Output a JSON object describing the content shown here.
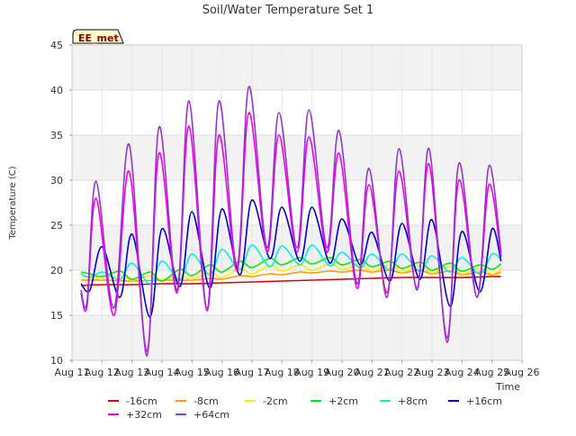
{
  "chart_data": {
    "type": "line",
    "title": "Soil/Water Temperature Set 1",
    "xlabel": "Time",
    "ylabel": "Temperature (C)",
    "badge": "EE_met",
    "xlim": [
      11,
      26
    ],
    "ylim": [
      10,
      45
    ],
    "x_ticks": [
      11,
      12,
      13,
      14,
      15,
      16,
      17,
      18,
      19,
      20,
      21,
      22,
      23,
      24,
      25,
      26
    ],
    "x_tick_labels": [
      "Aug 11",
      "Aug 12",
      "Aug 13",
      "Aug 14",
      "Aug 15",
      "Aug 16",
      "Aug 17",
      "Aug 18",
      "Aug 19",
      "Aug 20",
      "Aug 21",
      "Aug 22",
      "Aug 23",
      "Aug 24",
      "Aug 25",
      "Aug 26"
    ],
    "y_ticks": [
      10,
      15,
      20,
      25,
      30,
      35,
      40,
      45
    ],
    "y_tick_labels": [
      "10",
      "15",
      "20",
      "25",
      "30",
      "35",
      "40",
      "45"
    ],
    "grid_bands": true,
    "legend_position": "bottom",
    "series": [
      {
        "name": "-16cm",
        "color": "#dd0000",
        "x": [
          11.3,
          12,
          13,
          14,
          15,
          16,
          17,
          18,
          19,
          20,
          21,
          22,
          23,
          24,
          25,
          25.3
        ],
        "y": [
          18.3,
          18.4,
          18.4,
          18.5,
          18.5,
          18.6,
          18.7,
          18.8,
          18.9,
          19.0,
          19.1,
          19.2,
          19.2,
          19.2,
          19.3,
          19.3
        ]
      },
      {
        "name": "-8cm",
        "color": "#ff9900",
        "x": [
          11.3,
          12,
          13,
          14,
          15,
          15.6,
          16,
          16.6,
          17,
          17.6,
          18,
          18.6,
          19,
          19.6,
          20,
          20.6,
          21,
          21.6,
          22,
          22.6,
          23,
          23.6,
          24,
          24.6,
          25,
          25.3
        ],
        "y": [
          18.9,
          18.9,
          18.8,
          18.9,
          18.9,
          19.1,
          19.0,
          19.4,
          19.3,
          19.6,
          19.5,
          19.8,
          19.7,
          19.9,
          19.8,
          20.0,
          19.8,
          20.0,
          19.7,
          20.0,
          19.6,
          19.9,
          19.5,
          19.8,
          19.5,
          19.8
        ]
      },
      {
        "name": "-2cm",
        "color": "#ffee00",
        "x": [
          11.3,
          11.6,
          12,
          12.6,
          13,
          13.6,
          14,
          14.6,
          15,
          15.6,
          16,
          16.6,
          17,
          17.6,
          18,
          18.6,
          19,
          19.6,
          20,
          20.6,
          21,
          21.6,
          22,
          22.6,
          23,
          23.6,
          24,
          24.6,
          25,
          25.3
        ],
        "y": [
          19.2,
          19.3,
          19.0,
          19.4,
          18.9,
          19.4,
          18.9,
          19.5,
          19.0,
          19.8,
          19.2,
          20.2,
          19.6,
          20.5,
          19.9,
          20.6,
          20.0,
          20.7,
          20.1,
          20.6,
          19.9,
          20.6,
          19.8,
          20.5,
          19.7,
          20.4,
          19.6,
          20.2,
          19.6,
          20.1
        ]
      },
      {
        "name": "+2cm",
        "color": "#00ee00",
        "x": [
          11.3,
          11.6,
          12,
          12.6,
          13,
          13.6,
          14,
          14.6,
          15,
          15.6,
          16,
          16.6,
          17,
          17.6,
          18,
          18.6,
          19,
          19.6,
          20,
          20.6,
          21,
          21.6,
          22,
          22.6,
          23,
          23.6,
          24,
          24.6,
          25,
          25.3
        ],
        "y": [
          19.8,
          19.6,
          19.3,
          19.9,
          19.0,
          19.8,
          18.8,
          20.1,
          19.4,
          20.6,
          19.8,
          21.0,
          20.3,
          21.3,
          20.6,
          21.4,
          20.7,
          21.4,
          20.6,
          21.2,
          20.4,
          21.0,
          20.2,
          20.9,
          20.0,
          20.8,
          19.9,
          20.6,
          20.1,
          20.7
        ]
      },
      {
        "name": "+8cm",
        "color": "#00eeee",
        "x": [
          11.3,
          11.6,
          12,
          12.6,
          13,
          13.6,
          14,
          14.6,
          15,
          15.6,
          16,
          16.6,
          17,
          17.6,
          18,
          18.6,
          19,
          19.6,
          20,
          20.6,
          21,
          21.6,
          22,
          22.6,
          23,
          23.6,
          24,
          24.6,
          25,
          25.3
        ],
        "y": [
          19.6,
          19.2,
          19.8,
          19.0,
          20.8,
          18.5,
          21.0,
          19.0,
          21.8,
          19.5,
          22.3,
          20.1,
          22.8,
          20.4,
          22.7,
          20.6,
          22.8,
          20.5,
          22.0,
          20.3,
          21.8,
          20.0,
          21.8,
          19.9,
          21.6,
          19.8,
          21.4,
          19.6,
          21.8,
          21.2
        ]
      },
      {
        "name": "+16cm",
        "color": "#0000cc",
        "x": [
          11.3,
          11.6,
          12,
          12.6,
          13,
          13.6,
          14,
          14.6,
          15,
          15.6,
          16,
          16.6,
          17,
          17.6,
          18,
          18.6,
          19,
          19.6,
          20,
          20.6,
          21,
          21.6,
          22,
          22.6,
          23,
          23.6,
          24,
          24.6,
          25,
          25.3
        ],
        "y": [
          18.5,
          17.8,
          22.6,
          17.0,
          24.0,
          14.8,
          24.6,
          18.2,
          26.5,
          18.0,
          26.8,
          19.5,
          27.8,
          21.3,
          27.0,
          21.0,
          27.0,
          20.8,
          25.7,
          20.6,
          24.2,
          18.8,
          25.2,
          19.0,
          25.6,
          16.0,
          24.3,
          17.6,
          24.6,
          21.0
        ]
      },
      {
        "name": "+32cm",
        "color": "#ee00ee",
        "x": [
          11.3,
          11.5,
          11.8,
          12.4,
          12.9,
          13.5,
          13.9,
          14.5,
          14.9,
          15.5,
          15.9,
          16.5,
          16.9,
          17.5,
          17.9,
          18.5,
          18.9,
          19.5,
          19.9,
          20.5,
          20.9,
          21.5,
          21.9,
          22.5,
          22.9,
          23.5,
          23.9,
          24.5,
          24.9,
          25.3
        ],
        "y": [
          17.5,
          16.0,
          28.0,
          15.0,
          31.0,
          11.0,
          33.0,
          17.5,
          36.0,
          15.5,
          35.0,
          20.0,
          37.5,
          22.0,
          35.0,
          22.0,
          34.8,
          22.0,
          33.0,
          18.0,
          29.5,
          17.5,
          31.0,
          18.0,
          31.8,
          12.5,
          30.0,
          17.0,
          29.5,
          21.5
        ]
      },
      {
        "name": "+64cm",
        "color": "#9933cc",
        "x": [
          11.3,
          11.5,
          11.8,
          12.4,
          12.9,
          13.5,
          13.9,
          14.5,
          14.9,
          15.5,
          15.9,
          16.5,
          16.9,
          17.5,
          17.9,
          18.5,
          18.9,
          19.5,
          19.9,
          20.5,
          20.9,
          21.5,
          21.9,
          22.5,
          22.9,
          23.5,
          23.9,
          24.5,
          24.9,
          25.3
        ],
        "y": [
          17.8,
          16.5,
          29.9,
          15.8,
          34.0,
          10.5,
          35.9,
          17.8,
          38.8,
          15.8,
          38.8,
          20.5,
          40.4,
          22.5,
          37.5,
          22.5,
          37.8,
          22.5,
          35.5,
          18.5,
          31.3,
          17.0,
          33.5,
          17.8,
          33.5,
          12.0,
          31.9,
          17.0,
          31.6,
          22.0
        ]
      }
    ]
  }
}
